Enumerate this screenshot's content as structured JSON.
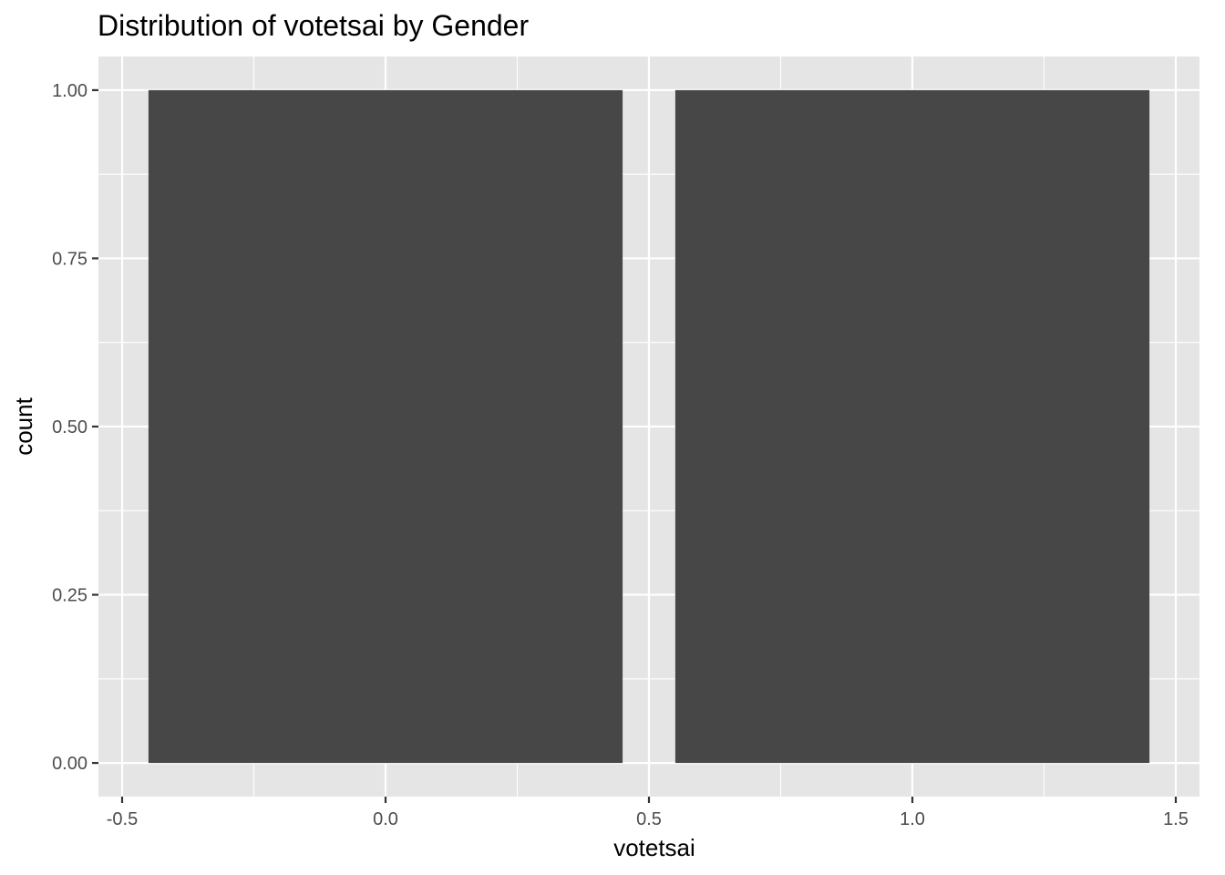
{
  "chart_data": {
    "type": "bar",
    "title": "Distribution of votetsai by Gender",
    "xlabel": "votetsai",
    "ylabel": "count",
    "x": [
      0,
      1
    ],
    "values": [
      1,
      1
    ],
    "bar_width": 0.9,
    "xlim": [
      -0.545,
      1.545
    ],
    "ylim": [
      -0.05,
      1.05
    ],
    "x_ticks": [
      -0.5,
      0.0,
      0.5,
      1.0,
      1.5
    ],
    "x_tick_labels": [
      "-0.5",
      "0.0",
      "0.5",
      "1.0",
      "1.5"
    ],
    "y_ticks": [
      0,
      0.25,
      0.5,
      0.75,
      1.0
    ],
    "y_tick_labels": [
      "0.00",
      "0.25",
      "0.50",
      "0.75",
      "1.00"
    ],
    "grid": true,
    "legend": "none",
    "colors": {
      "bar": "#474747",
      "panel": "#e5e5e5",
      "grid": "#ffffff",
      "tick": "#333333"
    }
  }
}
